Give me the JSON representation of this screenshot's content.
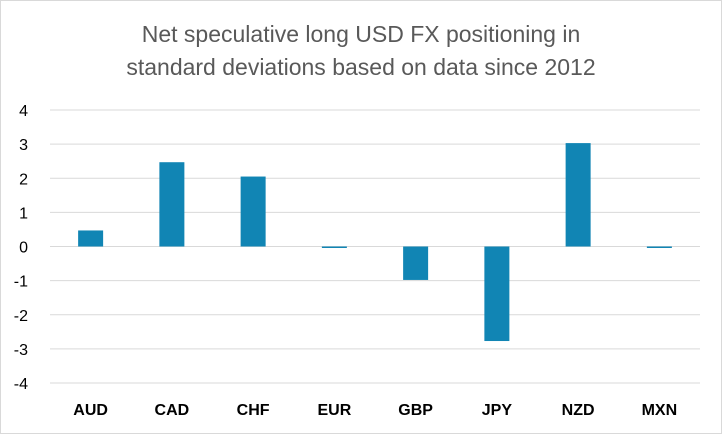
{
  "chart_data": {
    "type": "bar",
    "title_lines": [
      "Net speculative long USD FX positioning in",
      "standard deviations based on data since 2012"
    ],
    "categories": [
      "AUD",
      "CAD",
      "CHF",
      "EUR",
      "GBP",
      "JPY",
      "NZD",
      "MXN"
    ],
    "values": [
      0.47,
      2.47,
      2.05,
      -0.03,
      -0.98,
      -2.77,
      3.03,
      -0.03
    ],
    "ylim": [
      -4,
      4
    ],
    "yticks": [
      4,
      3,
      2,
      1,
      0,
      -1,
      -2,
      -3,
      -4
    ],
    "grid": true,
    "legend": "none",
    "colors": {
      "bar": "#1185B4",
      "grid": "#d9d9d9",
      "text": "#000000",
      "title": "#595959"
    }
  }
}
